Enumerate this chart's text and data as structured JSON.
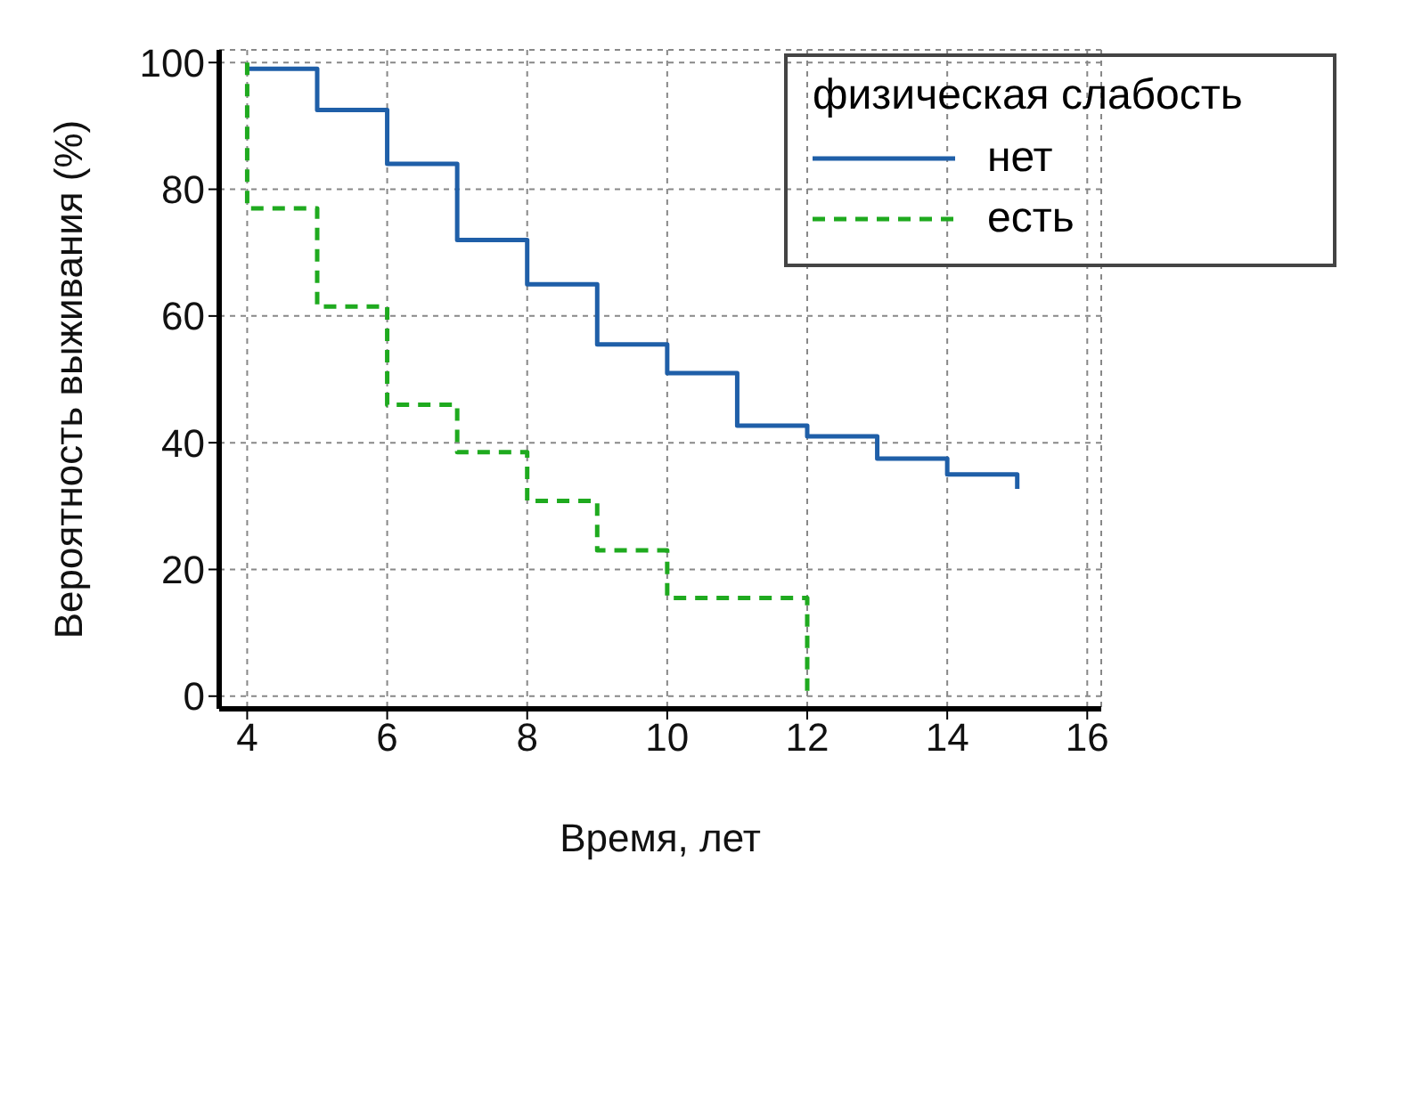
{
  "chart_data": {
    "type": "step",
    "xlabel": "Время, лет",
    "ylabel": "Вероятность выживания (%)",
    "legend_title": "физическая слабость",
    "series": [
      {
        "name": "нет",
        "color": "#1f5fa8",
        "line_style": "solid",
        "x": [
          4,
          5,
          6,
          7,
          8,
          9,
          10,
          11,
          12,
          13,
          14,
          15
        ],
        "values": [
          99,
          92.5,
          84,
          72,
          65,
          55.5,
          51,
          42.7,
          41,
          37.5,
          35,
          32.7
        ]
      },
      {
        "name": "есть",
        "color": "#1faa1f",
        "line_style": "dashed",
        "x": [
          4,
          4,
          5,
          6,
          7,
          8,
          9,
          10,
          12
        ],
        "values": [
          100,
          77,
          61.5,
          46,
          38.5,
          30.8,
          23,
          15.5,
          0
        ]
      }
    ],
    "xlim": [
      3.6,
      16.2
    ],
    "xticks": [
      4,
      6,
      8,
      10,
      12,
      14,
      16
    ],
    "ylim": [
      -2,
      102
    ],
    "yticks": [
      0,
      20,
      40,
      60,
      80,
      100
    ],
    "grid": true,
    "legend": "top right",
    "marker": "none"
  }
}
